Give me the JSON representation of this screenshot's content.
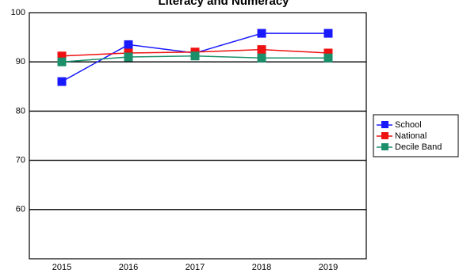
{
  "chart_data": {
    "type": "line",
    "title": "Literacy and Numeracy",
    "xlabel": "",
    "ylabel": "",
    "categories": [
      "2015",
      "2016",
      "2017",
      "2018",
      "2019"
    ],
    "ylim": [
      50,
      100
    ],
    "yticks": [
      60,
      70,
      80,
      90,
      100
    ],
    "grid": "horizontal",
    "legend_position": "right",
    "series": [
      {
        "name": "School",
        "color": "#1a1aff",
        "values": [
          86,
          93.5,
          91.8,
          95.8,
          95.8
        ]
      },
      {
        "name": "National",
        "color": "#ee1111",
        "values": [
          91.2,
          91.8,
          92.0,
          92.5,
          91.8
        ]
      },
      {
        "name": "Decile Band",
        "color": "#1a8f6a",
        "values": [
          90.0,
          91.0,
          91.2,
          90.8,
          90.8
        ]
      }
    ]
  }
}
